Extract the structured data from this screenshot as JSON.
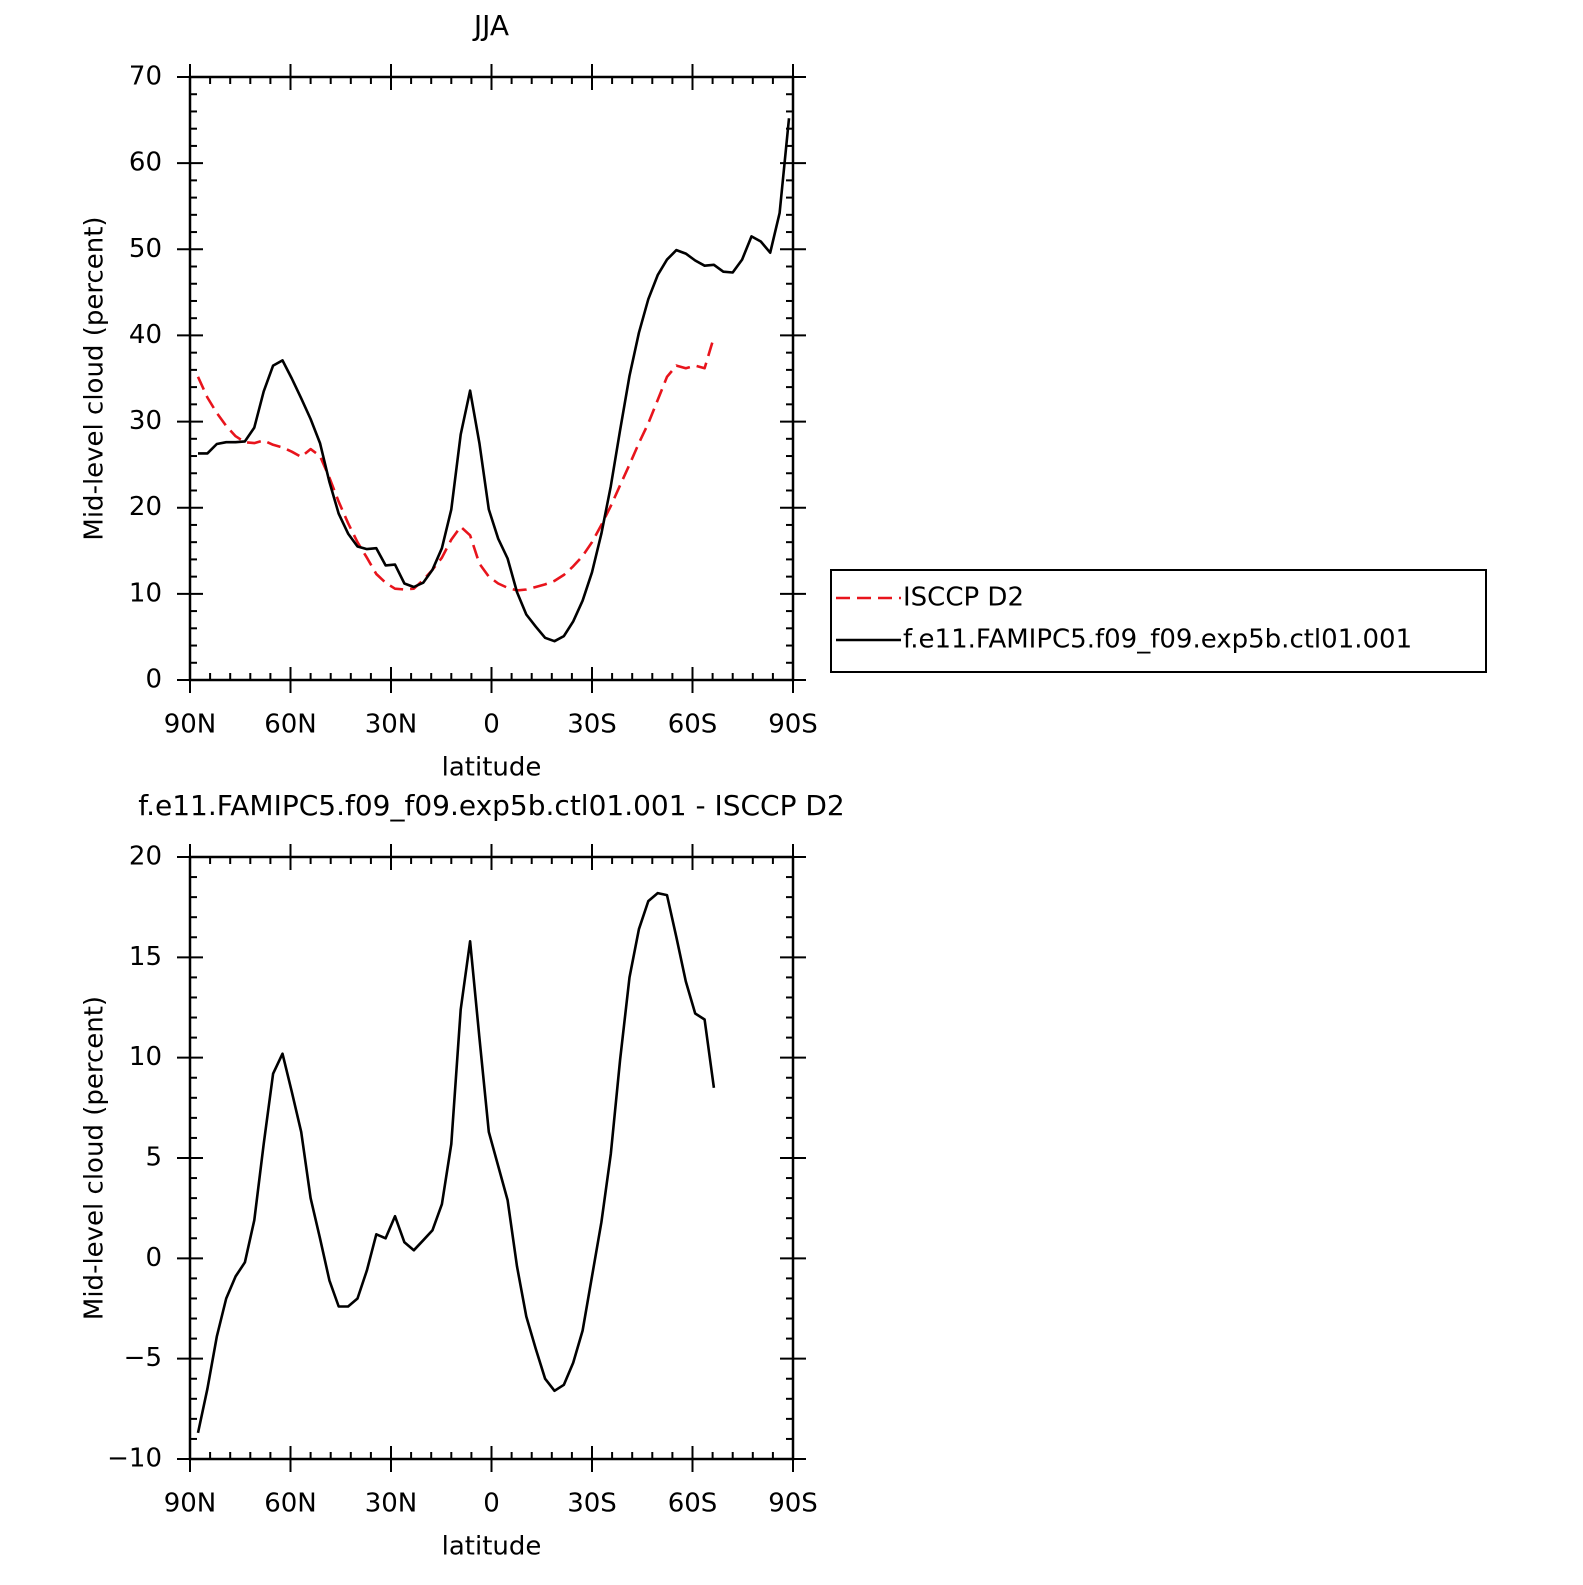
{
  "chart_data": [
    {
      "type": "line",
      "title": "JJA",
      "x_label": "latitude",
      "y_label": "Mid-level cloud (percent)",
      "xlim": [
        90,
        -90
      ],
      "xticks": [
        {
          "value": 90,
          "label": "90N"
        },
        {
          "value": 60,
          "label": "60N"
        },
        {
          "value": 30,
          "label": "30N"
        },
        0,
        {
          "value": -30,
          "label": "30S"
        },
        {
          "value": -60,
          "label": "60S"
        },
        {
          "value": -90,
          "label": "90S"
        }
      ],
      "ylim": [
        0,
        70
      ],
      "yticks": [
        0,
        10,
        20,
        30,
        40,
        50,
        60,
        70
      ],
      "legend": "outside-right",
      "series": [
        {
          "name": "ISCCP D2",
          "color": "#e8141c",
          "style": "dashed",
          "x": [
            87.6,
            84.8,
            82.0,
            79.2,
            76.4,
            73.6,
            70.8,
            68.0,
            65.2,
            62.4,
            59.6,
            56.8,
            54.0,
            51.2,
            48.4,
            45.6,
            42.8,
            40.0,
            37.2,
            34.4,
            31.6,
            28.8,
            26.0,
            23.2,
            20.4,
            17.6,
            14.8,
            12.0,
            9.2,
            6.4,
            3.6,
            0.8,
            -2.0,
            -4.8,
            -7.6,
            -10.4,
            -13.2,
            -16.0,
            -18.8,
            -21.6,
            -24.4,
            -27.2,
            -30.0,
            -32.8,
            -35.6,
            -38.4,
            -41.2,
            -44.0,
            -46.8,
            -49.6,
            -52.4,
            -55.2,
            -58.0,
            -60.8,
            -63.6,
            -66.4
          ],
          "values": [
            35.2,
            32.8,
            31,
            29.5,
            28.3,
            27.6,
            27.5,
            27.8,
            27.3,
            27,
            26.5,
            25.9,
            26.8,
            26,
            23.5,
            20.7,
            18.2,
            16,
            14.2,
            12.3,
            11.3,
            10.6,
            10.5,
            10.6,
            11.6,
            12.8,
            14.2,
            16.3,
            17.8,
            16.8,
            13.5,
            12,
            11.2,
            10.7,
            10.4,
            10.5,
            10.8,
            11.1,
            11.5,
            12.2,
            13.2,
            14.4,
            16,
            18,
            20.2,
            22.6,
            25,
            27.5,
            29.8,
            32.5,
            35.2,
            36.5,
            36.2,
            36.5,
            36.2,
            39.8
          ]
        },
        {
          "name": "f.e11.FAMIPC5.f09_f09.exp5b.ctl01.001",
          "color": "#000000",
          "style": "solid",
          "x": [
            87.6,
            84.8,
            82.0,
            79.2,
            76.4,
            73.6,
            70.8,
            68.0,
            65.2,
            62.4,
            59.6,
            56.8,
            54.0,
            51.2,
            48.4,
            45.6,
            42.8,
            40.0,
            37.2,
            34.4,
            31.6,
            28.8,
            26.0,
            23.2,
            20.4,
            17.6,
            14.8,
            12.0,
            9.2,
            6.4,
            3.6,
            0.8,
            -2.0,
            -4.8,
            -7.6,
            -10.4,
            -13.2,
            -16.0,
            -18.8,
            -21.6,
            -24.4,
            -27.2,
            -30.0,
            -32.8,
            -35.6,
            -38.4,
            -41.2,
            -44.0,
            -46.8,
            -49.6,
            -52.4,
            -55.2,
            -58.0,
            -60.8,
            -63.6,
            -66.4,
            -69.2,
            -72.0,
            -74.8,
            -77.6,
            -80.4,
            -83.2,
            -86.0,
            -88.8
          ],
          "values": [
            26.3,
            26.3,
            27.4,
            27.6,
            27.6,
            27.7,
            29.3,
            33.5,
            36.5,
            37.1,
            35,
            32.7,
            30.3,
            27.5,
            23,
            19.3,
            17,
            15.5,
            15.2,
            15.3,
            13.3,
            13.4,
            11.2,
            10.8,
            11.3,
            12.8,
            15.3,
            19.8,
            28.5,
            33.6,
            27.5,
            19.8,
            16.4,
            14.1,
            10.2,
            7.6,
            6.2,
            4.9,
            4.5,
            5.1,
            6.8,
            9.2,
            12.5,
            17,
            22.5,
            29,
            35.3,
            40.3,
            44.2,
            47,
            48.8,
            49.9,
            49.5,
            48.7,
            48.1,
            48.2,
            47.4,
            47.3,
            48.8,
            51.5,
            50.9,
            49.6,
            54.2,
            65.2
          ]
        }
      ]
    },
    {
      "type": "line",
      "title": "f.e11.FAMIPC5.f09_f09.exp5b.ctl01.001 - ISCCP D2",
      "x_label": "latitude",
      "y_label": "Mid-level cloud (percent)",
      "xlim": [
        90,
        -90
      ],
      "xticks": [
        {
          "value": 90,
          "label": "90N"
        },
        {
          "value": 60,
          "label": "60N"
        },
        {
          "value": 30,
          "label": "30N"
        },
        0,
        {
          "value": -30,
          "label": "30S"
        },
        {
          "value": -60,
          "label": "60S"
        },
        {
          "value": -90,
          "label": "90S"
        }
      ],
      "ylim": [
        -10,
        20
      ],
      "yticks": [
        {
          "value": -10,
          "label": "−10"
        },
        {
          "value": -5,
          "label": "−5"
        },
        0,
        5,
        10,
        15,
        20
      ],
      "series": [
        {
          "color": "#000000",
          "style": "solid",
          "x": [
            87.6,
            84.8,
            82.0,
            79.2,
            76.4,
            73.6,
            70.8,
            68.0,
            65.2,
            62.4,
            59.6,
            56.8,
            54.0,
            51.2,
            48.4,
            45.6,
            42.8,
            40.0,
            37.2,
            34.4,
            31.6,
            28.8,
            26.0,
            23.2,
            20.4,
            17.6,
            14.8,
            12.0,
            9.2,
            6.4,
            3.6,
            0.8,
            -2.0,
            -4.8,
            -7.6,
            -10.4,
            -13.2,
            -16.0,
            -18.8,
            -21.6,
            -24.4,
            -27.2,
            -30.0,
            -32.8,
            -35.6,
            -38.4,
            -41.2,
            -44.0,
            -46.8,
            -49.6,
            -52.4,
            -55.2,
            -58.0,
            -60.8,
            -63.6,
            -66.4
          ],
          "values": [
            -8.7,
            -6.5,
            -3.9,
            -2,
            -0.9,
            -0.2,
            1.9,
            5.7,
            9.2,
            10.2,
            8.3,
            6.3,
            3,
            1,
            -1.1,
            -2.4,
            -2.4,
            -2,
            -0.6,
            1.2,
            1,
            2.1,
            0.8,
            0.4,
            0.9,
            1.4,
            2.7,
            5.7,
            12.4,
            15.8,
            11,
            6.3,
            4.6,
            2.9,
            -0.4,
            -2.9,
            -4.5,
            -6,
            -6.6,
            -6.3,
            -5.2,
            -3.6,
            -0.9,
            1.8,
            5.2,
            9.9,
            14,
            16.4,
            17.8,
            18.2,
            18.1,
            16,
            13.8,
            12.2,
            11.9,
            8.5
          ]
        }
      ]
    }
  ]
}
